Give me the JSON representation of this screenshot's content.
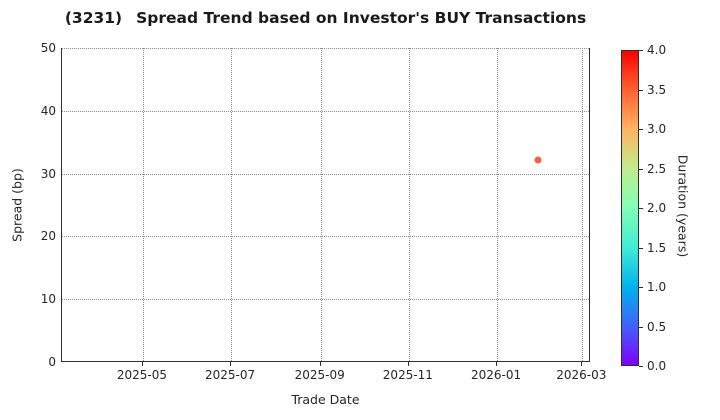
{
  "title": {
    "code": "(3231)",
    "text": "Spread Trend based on Investor's BUY Transactions"
  },
  "chart_data": {
    "type": "scatter",
    "title": "(3231) Spread Trend based on Investor's BUY Transactions",
    "xlabel": "Trade Date",
    "ylabel": "Spread (bp)",
    "xlim": [
      "2025-03-06",
      "2026-03-07"
    ],
    "ylim": [
      0,
      50
    ],
    "yticks": [
      0,
      10,
      20,
      30,
      40,
      50
    ],
    "xticks": [
      "2025-05",
      "2025-07",
      "2025-09",
      "2025-11",
      "2026-01",
      "2026-03"
    ],
    "grid": true,
    "grid_style": "dotted",
    "legend": "none",
    "points": [
      {
        "trade_date": "2026-01-29",
        "spread_bp": 32.2,
        "duration_years": 3.4,
        "color": "#f5613a"
      }
    ],
    "colorbar": {
      "label": "Duration (years)",
      "min": 0.0,
      "max": 4.0,
      "tick_labels": [
        "4.0",
        "3.5",
        "3.0",
        "2.5",
        "2.0",
        "1.5",
        "1.0",
        "0.5",
        "0.0"
      ],
      "colormap": "rainbow",
      "gradient_stops_bottom_to_top": [
        "#8000ff",
        "#4062fa",
        "#00b4ec",
        "#40ecd4",
        "#80ffb4",
        "#bfec8e",
        "#ffb462",
        "#ff6232",
        "#ff0000"
      ]
    }
  }
}
